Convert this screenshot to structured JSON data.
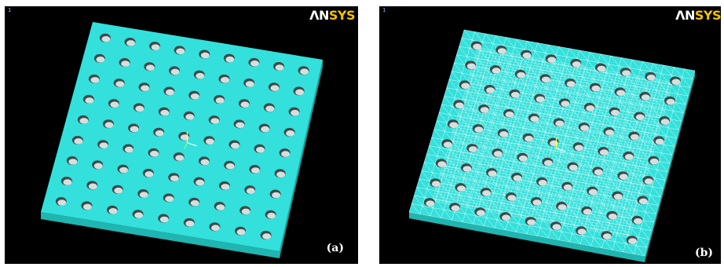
{
  "panels": [
    {
      "id": "a",
      "caption": "(a)",
      "logo_left": "ΛN",
      "logo_right": "SYS",
      "window_number": "1",
      "mesh": false
    },
    {
      "id": "b",
      "caption": "(b)",
      "logo_left": "ΛN",
      "logo_right": "SYS",
      "window_number": "1",
      "mesh": true
    }
  ],
  "colors": {
    "plate_top": "#33e0db",
    "plate_side": "#1fb5b0",
    "hole_fill": "#d8dede",
    "hole_shadow": "#3a4a4a",
    "mesh_line": "#ffffff",
    "background": "#000000",
    "logo_accent": "#f2c200"
  },
  "plate": {
    "hole_rows": 9,
    "hole_cols": 9
  }
}
